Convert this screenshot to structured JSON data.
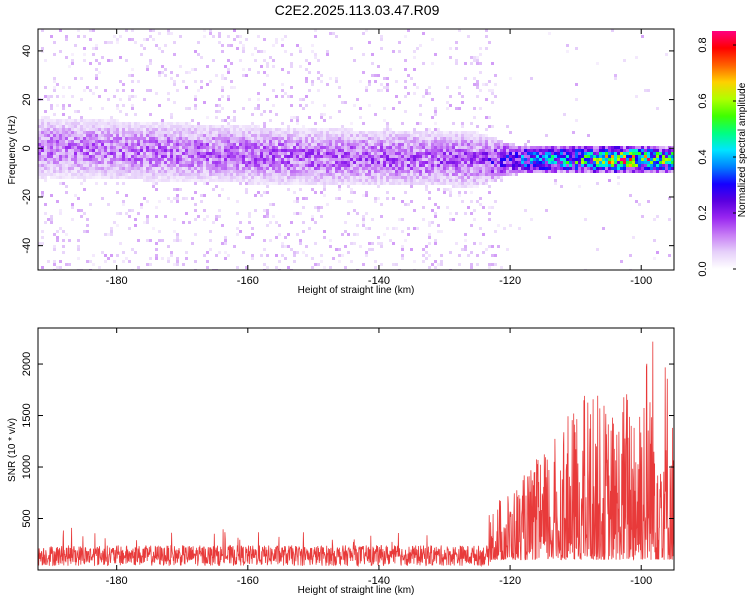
{
  "title": "C2E2.2025.113.03.47.R09",
  "colors": {
    "background": "#ffffff",
    "snr_line": "#e83a3a",
    "colormap": [
      "#ffffff",
      "#e6d0fa",
      "#c77df5",
      "#9a27f0",
      "#5a00e0",
      "#1500ff",
      "#0080ff",
      "#00e5ff",
      "#00ff80",
      "#40ff00",
      "#b0ff00",
      "#ffd000",
      "#ff6000",
      "#ff0000",
      "#ff0080"
    ]
  },
  "chart_data": [
    {
      "type": "heatmap",
      "xlabel": "Height of straight line (km)",
      "ylabel": "Frequency (Hz)",
      "xlim": [
        -192,
        -95
      ],
      "ylim": [
        -50,
        49
      ],
      "x_ticks": [
        -180,
        -160,
        -140,
        -120,
        -100
      ],
      "y_ticks": [
        -40,
        -20,
        0,
        20,
        40
      ],
      "colorbar": {
        "label": "Normalized spectral amplitude",
        "range": [
          0.0,
          0.85
        ],
        "ticks": [
          0.0,
          0.2,
          0.4,
          0.6,
          0.8
        ]
      },
      "band": {
        "center_frequency_hz": [
          {
            "height_km": -192,
            "freq_hz": 1
          },
          {
            "height_km": -150,
            "freq_hz": -3
          },
          {
            "height_km": -125,
            "freq_hz": -4
          },
          {
            "height_km": -96,
            "freq_hz": -4
          }
        ],
        "half_width_hz": [
          {
            "height_km": -192,
            "width": 10
          },
          {
            "height_km": -125,
            "width": 9
          },
          {
            "height_km": -120,
            "width": 5
          },
          {
            "height_km": -96,
            "width": 4
          }
        ],
        "peak_amplitude": [
          {
            "height_km": -192,
            "amp": 0.15
          },
          {
            "height_km": -125,
            "amp": 0.18
          },
          {
            "height_km": -118,
            "amp": 0.38
          },
          {
            "height_km": -110,
            "amp": 0.5
          },
          {
            "height_km": -102,
            "amp": 0.75
          },
          {
            "height_km": -97,
            "amp": 0.6
          }
        ]
      }
    },
    {
      "type": "line",
      "xlabel": "Height of straight line (km)",
      "ylabel": "SNR (10 * v/v)",
      "xlim": [
        -192,
        -95
      ],
      "ylim": [
        0,
        2350
      ],
      "x_ticks": [
        -180,
        -160,
        -140,
        -120,
        -100
      ],
      "y_ticks": [
        500,
        1000,
        1500,
        2000
      ],
      "envelope": [
        {
          "height_km": -192,
          "snr_max": 420
        },
        {
          "height_km": -140,
          "snr_max": 380
        },
        {
          "height_km": -126,
          "snr_max": 420
        },
        {
          "height_km": -121,
          "snr_max": 650
        },
        {
          "height_km": -118,
          "snr_max": 820
        },
        {
          "height_km": -115,
          "snr_max": 1050
        },
        {
          "height_km": -110,
          "snr_max": 1500
        },
        {
          "height_km": -108,
          "snr_max": 1720
        },
        {
          "height_km": -104,
          "snr_max": 1450
        },
        {
          "height_km": -101,
          "snr_max": 1980
        },
        {
          "height_km": -98,
          "snr_max": 2340
        },
        {
          "height_km": -96,
          "snr_max": 2050
        },
        {
          "height_km": -95,
          "snr_max": 1300
        }
      ],
      "baseline_snr": 100
    }
  ]
}
